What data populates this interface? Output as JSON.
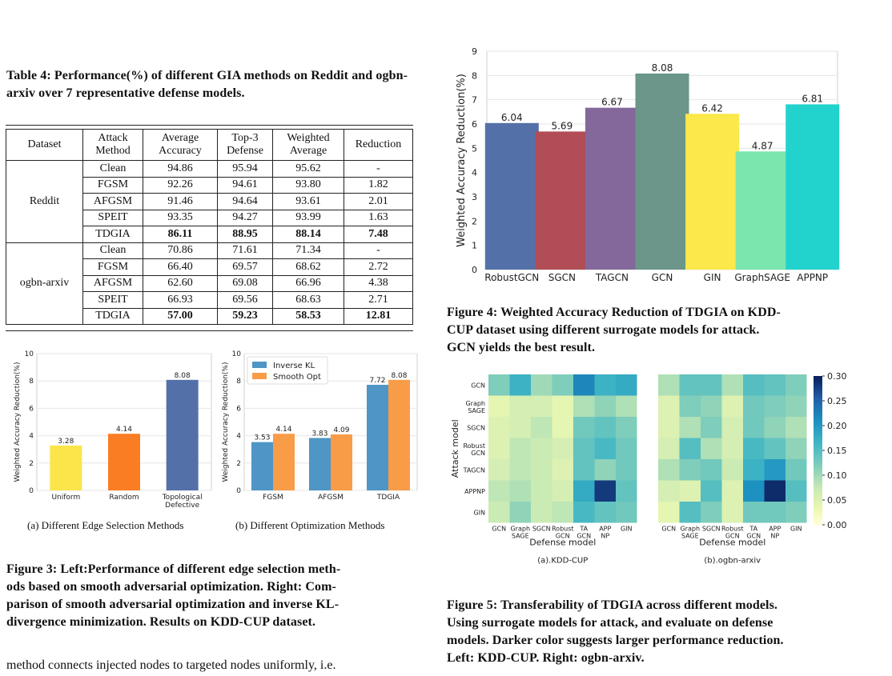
{
  "table4": {
    "caption": "Table 4: Performance(%) of different GIA methods on Reddit and ogbn-arxiv over 7 representative defense models.",
    "header": {
      "dataset": "Dataset",
      "attack_line1": "Attack",
      "attack_line2": "Method",
      "avg_line1": "Average",
      "avg_line2": "Accuracy",
      "top3_line1": "Top-3",
      "top3_line2": "Defense",
      "weighted_line1": "Weighted",
      "weighted_line2": "Average",
      "reduction": "Reduction"
    },
    "groups": [
      {
        "dataset": "Reddit",
        "rows": [
          {
            "method": "Clean",
            "avg": "94.86",
            "top3": "95.94",
            "weighted": "95.62",
            "reduction": "-",
            "bold": false
          },
          {
            "method": "FGSM",
            "avg": "92.26",
            "top3": "94.61",
            "weighted": "93.80",
            "reduction": "1.82",
            "bold": false
          },
          {
            "method": "AFGSM",
            "avg": "91.46",
            "top3": "94.64",
            "weighted": "93.61",
            "reduction": "2.01",
            "bold": false
          },
          {
            "method": "SPEIT",
            "avg": "93.35",
            "top3": "94.27",
            "weighted": "93.99",
            "reduction": "1.63",
            "bold": false
          },
          {
            "method": "TDGIA",
            "avg": "86.11",
            "top3": "88.95",
            "weighted": "88.14",
            "reduction": "7.48",
            "bold": true
          }
        ]
      },
      {
        "dataset": "ogbn-arxiv",
        "rows": [
          {
            "method": "Clean",
            "avg": "70.86",
            "top3": "71.61",
            "weighted": "71.34",
            "reduction": "-",
            "bold": false
          },
          {
            "method": "FGSM",
            "avg": "66.40",
            "top3": "69.57",
            "weighted": "68.62",
            "reduction": "2.72",
            "bold": false
          },
          {
            "method": "AFGSM",
            "avg": "62.60",
            "top3": "69.08",
            "weighted": "66.96",
            "reduction": "4.38",
            "bold": false
          },
          {
            "method": "SPEIT",
            "avg": "66.93",
            "top3": "69.56",
            "weighted": "68.63",
            "reduction": "2.71",
            "bold": false
          },
          {
            "method": "TDGIA",
            "avg": "57.00",
            "top3": "59.23",
            "weighted": "58.53",
            "reduction": "12.81",
            "bold": true
          }
        ]
      }
    ]
  },
  "figure3": {
    "caption_l1": "Figure 3: Left:Performance of different edge selection meth-",
    "caption_l2": "ods based on smooth adversarial optimization. Right: Com-",
    "caption_l3": "parison of smooth adversarial optimization and inverse KL-",
    "caption_l4": "divergence minimization. Results on KDD-CUP dataset.",
    "sub_a": "(a)  Different Edge Selection Methods",
    "sub_b": "(b)  Different Optimization Methods"
  },
  "body_text": "method connects injected nodes to targeted nodes uniformly, i.e.",
  "figure4": {
    "caption_l1": "Figure 4: Weighted Accuracy Reduction of TDGIA on KDD-",
    "caption_l2": "CUP dataset using different surrogate models for attack.",
    "caption_l3": "GCN yields the best result."
  },
  "figure5": {
    "caption_l1": "Figure 5: Transferability of TDGIA across different models.",
    "caption_l2": "Using surrogate models for attack, and evaluate on defense",
    "caption_l3": "models. Darker color suggests larger performance reduction.",
    "caption_l4": "Left: KDD-CUP. Right: ogbn-arxiv."
  },
  "chart_data": [
    {
      "id": "fig4",
      "type": "bar",
      "categories": [
        "RobustGCN",
        "SGCN",
        "TAGCN",
        "GCN",
        "GIN",
        "GraphSAGE",
        "APPNP"
      ],
      "values": [
        6.04,
        5.69,
        6.67,
        8.08,
        6.42,
        4.87,
        6.81
      ],
      "value_labels": [
        "6.04",
        "5.69",
        "6.67",
        "8.08",
        "6.42",
        "4.87",
        "6.81"
      ],
      "colors": [
        "#5470a8",
        "#b04d56",
        "#84689c",
        "#6b9689",
        "#fbe84a",
        "#7be6ae",
        "#22d3cd"
      ],
      "ylabel": "Weighted Accuracy Reduction(%)",
      "ylim": [
        0,
        9
      ],
      "yticks": [
        "0",
        "1",
        "2",
        "3",
        "4",
        "5",
        "6",
        "7",
        "8",
        "9"
      ]
    },
    {
      "id": "fig3a",
      "type": "bar",
      "categories": [
        "Uniform",
        "Random",
        "Topological"
      ],
      "category_line2": [
        "",
        "",
        "Defective"
      ],
      "values": [
        3.28,
        4.14,
        8.08
      ],
      "value_labels": [
        "3.28",
        "4.14",
        "8.08"
      ],
      "colors": [
        "#fbe54a",
        "#fb7d23",
        "#5470a8"
      ],
      "ylabel": "Weighted Accuracy Reduction(%)",
      "ylim": [
        0,
        10
      ],
      "yticks": [
        "0",
        "2",
        "4",
        "6",
        "8",
        "10"
      ]
    },
    {
      "id": "fig3b",
      "type": "bar",
      "categories": [
        "FGSM",
        "AFGSM",
        "TDGIA"
      ],
      "series": [
        {
          "name": "Inverse KL",
          "values": [
            3.53,
            3.83,
            7.72
          ],
          "labels": [
            "3.53",
            "3.83",
            "7.72"
          ],
          "color": "#4f95c6"
        },
        {
          "name": "Smooth Opt",
          "values": [
            4.14,
            4.09,
            8.08
          ],
          "labels": [
            "4.14",
            "4.09",
            "8.08"
          ],
          "color": "#f99c48"
        }
      ],
      "ylabel": "Weighted Accuracy Reduction(%)",
      "ylim": [
        0,
        10
      ],
      "yticks": [
        "0",
        "2",
        "4",
        "6",
        "8",
        "10"
      ]
    },
    {
      "id": "fig5",
      "type": "heatmap",
      "row_labels": [
        [
          "GCN"
        ],
        [
          "Graph",
          "SAGE"
        ],
        [
          "SGCN"
        ],
        [
          "Robust",
          "GCN"
        ],
        [
          "TAGCN"
        ],
        [
          "APPNP"
        ],
        [
          "GIN"
        ]
      ],
      "col_labels": [
        [
          "GCN"
        ],
        [
          "Graph",
          "SAGE"
        ],
        [
          "SGCN"
        ],
        [
          "Robust",
          "GCN"
        ],
        [
          "TA",
          "GCN"
        ],
        [
          "APP",
          "NP"
        ],
        [
          "GIN"
        ]
      ],
      "ylabel": "Attack model",
      "xlabel": "Defense model",
      "colorbar_ticks": [
        "0.00",
        "0.05",
        "0.10",
        "0.15",
        "0.20",
        "0.25",
        "0.30"
      ],
      "vmin": 0,
      "vmax": 0.3,
      "panels": [
        {
          "title": "(a).KDD-CUP",
          "values": [
            [
              0.12,
              0.17,
              0.1,
              0.12,
              0.22,
              0.17,
              0.18
            ],
            [
              0.04,
              0.06,
              0.06,
              0.04,
              0.09,
              0.11,
              0.09
            ],
            [
              0.05,
              0.06,
              0.08,
              0.04,
              0.13,
              0.14,
              0.12
            ],
            [
              0.05,
              0.08,
              0.07,
              0.06,
              0.14,
              0.16,
              0.13
            ],
            [
              0.06,
              0.08,
              0.07,
              0.05,
              0.14,
              0.11,
              0.13
            ],
            [
              0.08,
              0.09,
              0.07,
              0.06,
              0.18,
              0.28,
              0.14
            ],
            [
              0.07,
              0.11,
              0.07,
              0.08,
              0.16,
              0.14,
              0.13
            ]
          ]
        },
        {
          "title": "(b).ogbn-arxiv",
          "values": [
            [
              0.09,
              0.14,
              0.14,
              0.09,
              0.15,
              0.14,
              0.12
            ],
            [
              0.05,
              0.12,
              0.11,
              0.05,
              0.13,
              0.12,
              0.11
            ],
            [
              0.05,
              0.09,
              0.12,
              0.06,
              0.13,
              0.11,
              0.09
            ],
            [
              0.06,
              0.15,
              0.09,
              0.06,
              0.16,
              0.14,
              0.11
            ],
            [
              0.09,
              0.12,
              0.13,
              0.07,
              0.17,
              0.2,
              0.13
            ],
            [
              0.06,
              0.05,
              0.15,
              0.05,
              0.21,
              0.29,
              0.15
            ],
            [
              0.04,
              0.15,
              0.12,
              0.05,
              0.13,
              0.13,
              0.12
            ]
          ]
        }
      ]
    }
  ]
}
